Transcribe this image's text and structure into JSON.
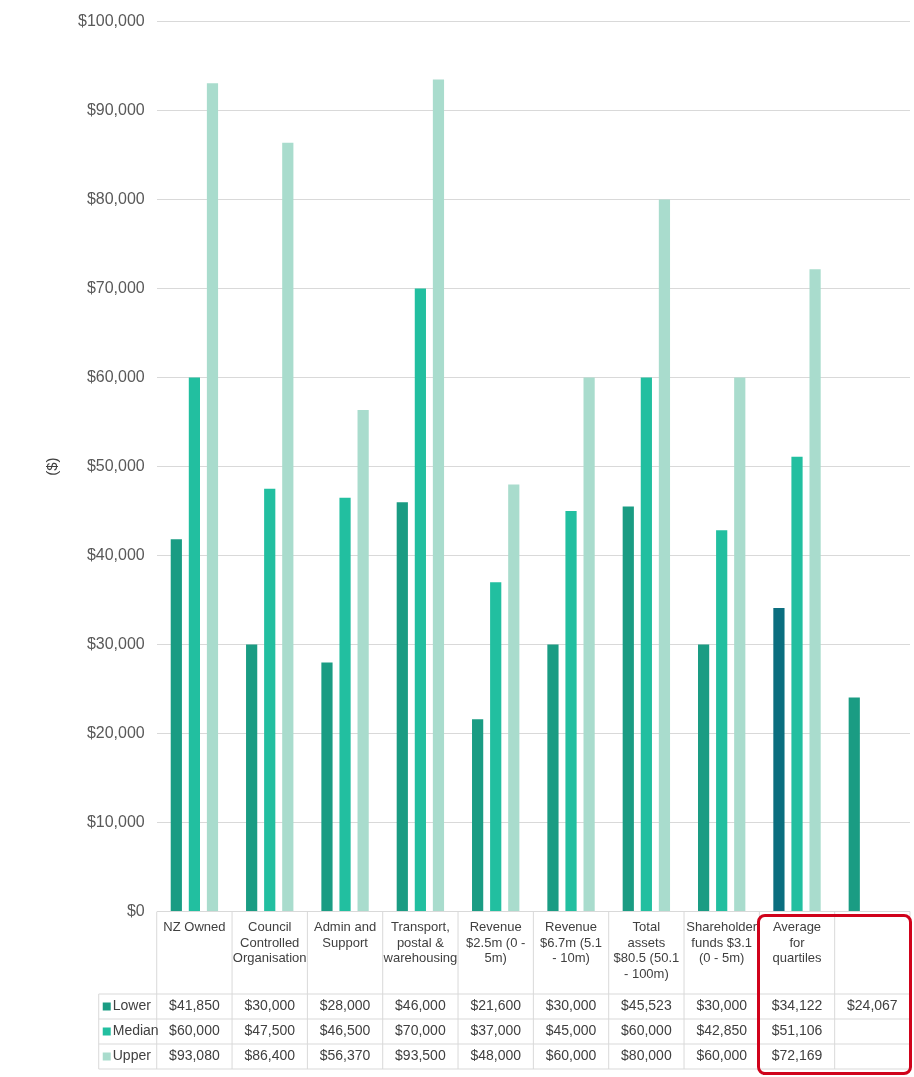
{
  "chart_data": {
    "type": "bar",
    "ylabel": "($)",
    "categories": [
      "NZ Owned",
      "Council Controlled Organisation",
      "Admin and Support",
      "Transport, postal & warehousing",
      "Revenue $2.5m (0 - 5m)",
      "Revenue $6.7m (5.1 - 10m)",
      "Total assets $80.5 (50.1 - 100m)",
      "Shareholder funds $3.1 (0 - 5m)",
      "Average for quartiles",
      null
    ],
    "series": [
      {
        "name": "Lower",
        "color": "#1a9c83",
        "colors": [
          "#1a9c83",
          "#1a9c83",
          "#1a9c83",
          "#1a9c83",
          "#1a9c83",
          "#1a9c83",
          "#1a9c83",
          "#1a9c83",
          "#0b6e7f",
          "#1a9c83"
        ],
        "values": [
          41850,
          30000,
          28000,
          46000,
          21600,
          30000,
          45523,
          30000,
          34122,
          24067
        ],
        "value_labels": [
          "$41,850",
          "$30,000",
          "$28,000",
          "$46,000",
          "$21,600",
          "$30,000",
          "$45,523",
          "$30,000",
          "$34,122",
          "$24,067"
        ]
      },
      {
        "name": "Median",
        "color": "#22bfa0",
        "values": [
          60000,
          47500,
          46500,
          70000,
          37000,
          45000,
          60000,
          42850,
          51106,
          null
        ],
        "value_labels": [
          "$60,000",
          "$47,500",
          "$46,500",
          "$70,000",
          "$37,000",
          "$45,000",
          "$60,000",
          "$42,850",
          "$51,106",
          null
        ]
      },
      {
        "name": "Upper",
        "color": "#a9dccd",
        "values": [
          93080,
          86400,
          56370,
          93500,
          48000,
          60000,
          80000,
          60000,
          72169,
          null
        ],
        "value_labels": [
          "$93,080",
          "$86,400",
          "$56,370",
          "$93,500",
          "$48,000",
          "$60,000",
          "$80,000",
          "$60,000",
          "$72,169",
          null
        ]
      }
    ],
    "ylim": [
      0,
      100000
    ],
    "yticks": [
      {
        "value": 0,
        "label": "$0"
      },
      {
        "value": 10000,
        "label": "$10,000"
      },
      {
        "value": 20000,
        "label": "$20,000"
      },
      {
        "value": 30000,
        "label": "$30,000"
      },
      {
        "value": 40000,
        "label": "$40,000"
      },
      {
        "value": 50000,
        "label": "$50,000"
      },
      {
        "value": 60000,
        "label": "$60,000"
      },
      {
        "value": 70000,
        "label": "$70,000"
      },
      {
        "value": 80000,
        "label": "$80,000"
      },
      {
        "value": 90000,
        "label": "$90,000"
      },
      {
        "value": 100000,
        "label": "$100,000"
      }
    ],
    "grid": "y",
    "legend": "bottom"
  }
}
